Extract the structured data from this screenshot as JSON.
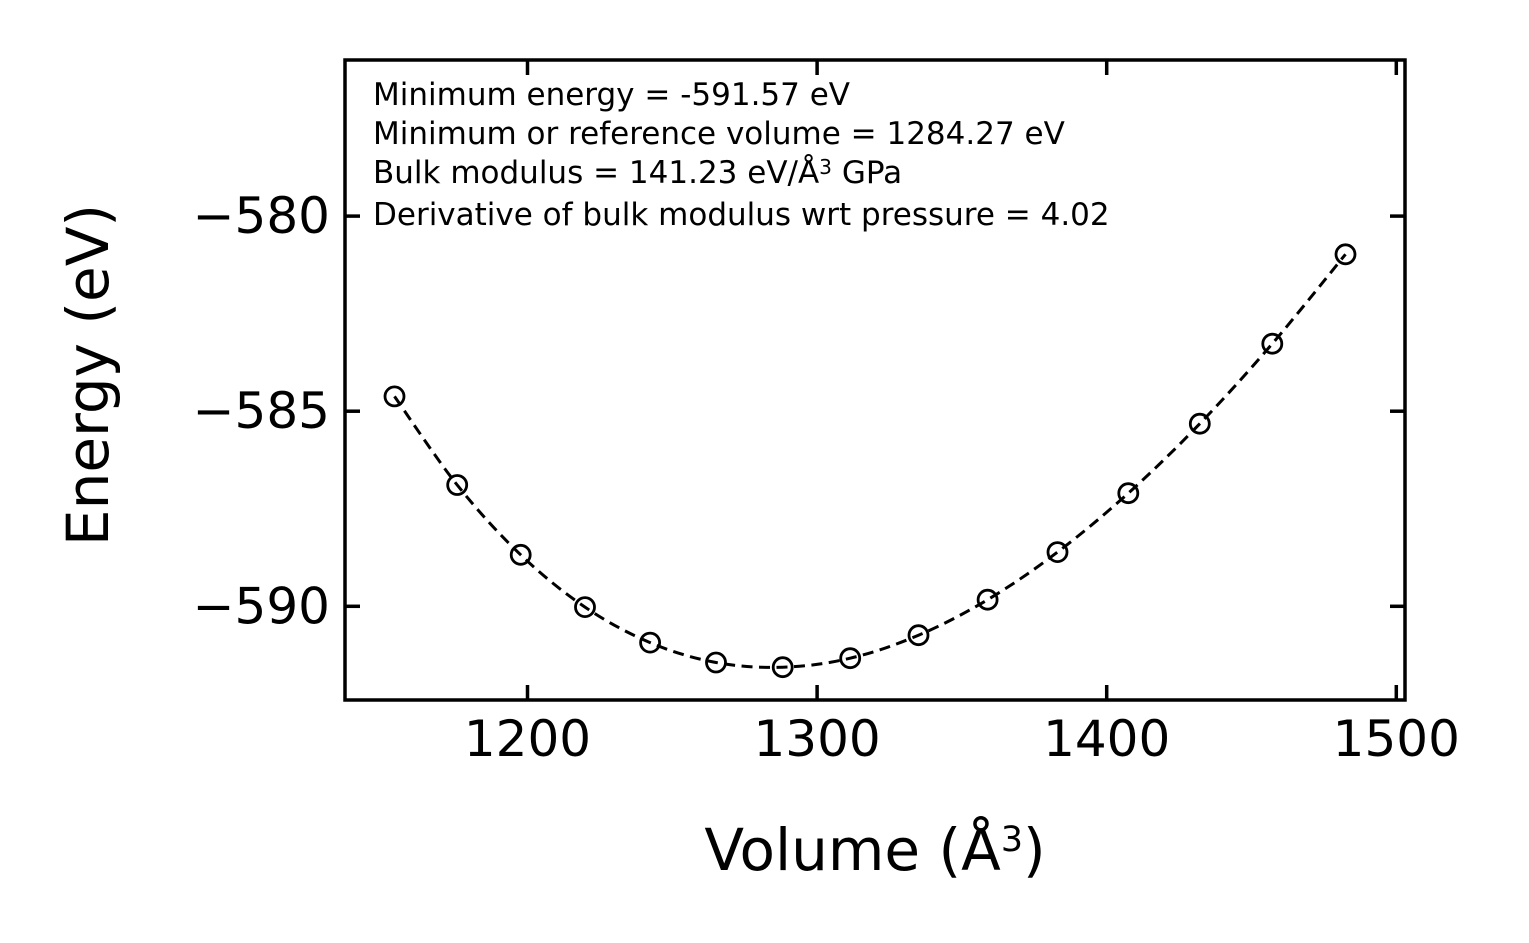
{
  "figure": {
    "background_color": "#ffffff",
    "foreground_color": "#000000"
  },
  "annotation": {
    "lines": [
      {
        "text": "Minimum energy = -591.57 eV"
      },
      {
        "text": "Minimum or reference volume = 1284.27 eV"
      },
      {
        "prefix": "Bulk modulus = 141.23 eV/Å",
        "sup": "3",
        "suffix": " GPa"
      },
      {
        "text": "Derivative of bulk modulus wrt pressure = 4.02"
      }
    ]
  },
  "chart_data": {
    "type": "scatter",
    "title": "",
    "xlabel": "Volume (Å³)",
    "xlabel_parts": {
      "prefix": "Volume (Å",
      "sup": "3",
      "suffix": ")"
    },
    "ylabel": "Energy (eV)",
    "xlim": [
      1137,
      1503
    ],
    "ylim": [
      -592.4,
      -576.0
    ],
    "x_ticks": [
      1200,
      1300,
      1400,
      1500
    ],
    "x_tick_labels": [
      "1200",
      "1300",
      "1400",
      "1500"
    ],
    "y_ticks": [
      -580,
      -585,
      -590
    ],
    "y_tick_labels": [
      "−580",
      "−585",
      "−590"
    ],
    "grid": false,
    "legend": "none",
    "series": [
      {
        "name": "energy-volume-data-with-eos-fit",
        "marker": "open-circle",
        "line_style": "dashed",
        "color": "#000000",
        "x": [
          1154.08,
          1175.75,
          1197.68,
          1219.88,
          1242.35,
          1265.1,
          1288.13,
          1311.43,
          1335.01,
          1358.87,
          1383.02,
          1407.45,
          1432.16,
          1457.17,
          1482.46
        ],
        "y": [
          -584.62,
          -586.89,
          -588.68,
          -590.02,
          -590.93,
          -591.44,
          -591.56,
          -591.33,
          -590.74,
          -589.83,
          -588.61,
          -587.1,
          -585.32,
          -583.27,
          -580.98
        ]
      }
    ],
    "fit_parameters": {
      "minimum_energy_eV": -591.57,
      "reference_volume": 1284.27,
      "bulk_modulus": 141.23,
      "bulk_modulus_pressure_derivative": 4.02
    }
  }
}
